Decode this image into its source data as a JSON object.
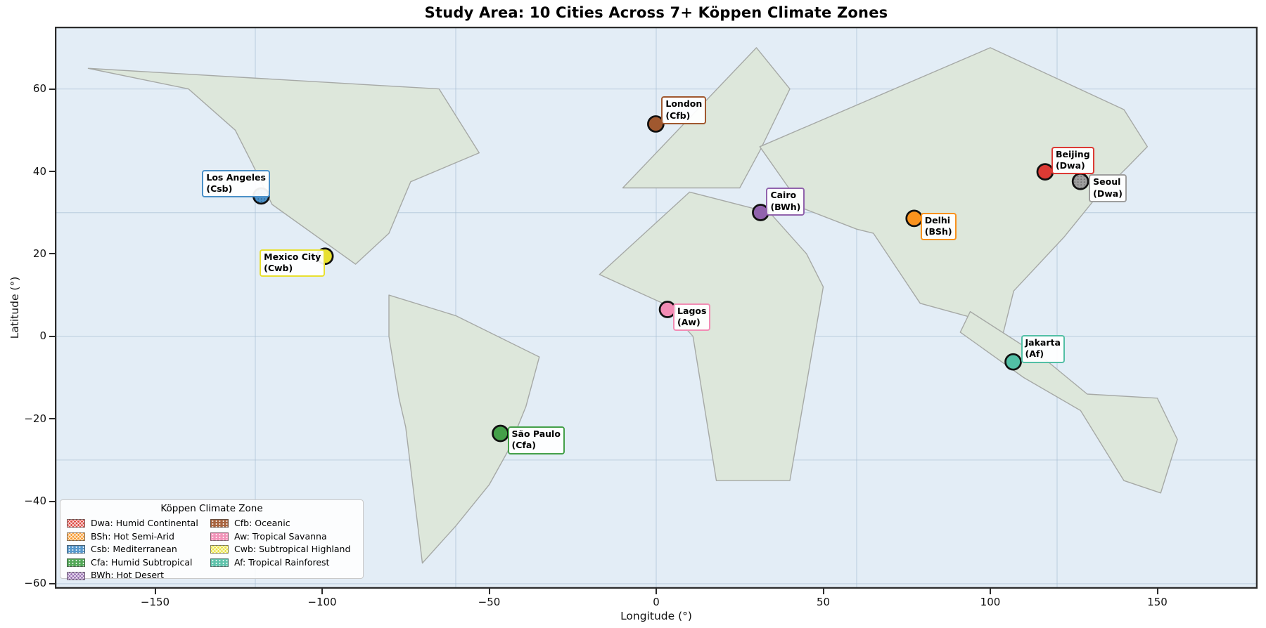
{
  "chart_data": {
    "type": "scatter",
    "title": "Study Area: 10 Cities Across 7+ Köppen Climate Zones",
    "xlabel": "Longitude (°)",
    "ylabel": "Latitude (°)",
    "xlim": [
      -180,
      180
    ],
    "ylim": [
      -61.2,
      75.1
    ],
    "grid": "on",
    "grid_lon": [
      -120,
      -60,
      0,
      60,
      120
    ],
    "grid_lat": [
      -60,
      -30,
      0,
      30,
      60
    ],
    "xticks": [
      {
        "value": -150,
        "label": "−150"
      },
      {
        "value": -100,
        "label": "−100"
      },
      {
        "value": -50,
        "label": "−50"
      },
      {
        "value": 0,
        "label": "0"
      },
      {
        "value": 50,
        "label": "50"
      },
      {
        "value": 100,
        "label": "100"
      },
      {
        "value": 150,
        "label": "150"
      }
    ],
    "yticks": [
      {
        "value": 60,
        "label": "60"
      },
      {
        "value": 40,
        "label": "40"
      },
      {
        "value": 20,
        "label": "20"
      },
      {
        "value": 0,
        "label": "0"
      },
      {
        "value": -20,
        "label": "−20"
      },
      {
        "value": -40,
        "label": "−40"
      },
      {
        "value": -60,
        "label": "−60"
      }
    ],
    "cities": [
      {
        "name": "Los Angeles",
        "koppen": "Csb",
        "lon": -118.24,
        "lat": 34.05,
        "color": "#4a90c8",
        "hatch": true,
        "label_offset": [
          -84,
          -37
        ]
      },
      {
        "name": "Mexico City",
        "koppen": "Cwb",
        "lon": -99.13,
        "lat": 19.43,
        "color": "#e8e030",
        "hatch": false,
        "label_offset": [
          -93,
          -10
        ]
      },
      {
        "name": "São Paulo",
        "koppen": "Cfa",
        "lon": -46.63,
        "lat": -23.55,
        "color": "#44a049",
        "hatch": false,
        "label_offset": [
          10,
          -10
        ]
      },
      {
        "name": "London",
        "koppen": "Cfb",
        "lon": -0.13,
        "lat": 51.51,
        "color": "#a0582f",
        "hatch": false,
        "label_offset": [
          8,
          -39
        ]
      },
      {
        "name": "Lagos",
        "koppen": "Aw",
        "lon": 3.38,
        "lat": 6.52,
        "color": "#f28cb4",
        "hatch": false,
        "label_offset": [
          8,
          -9
        ]
      },
      {
        "name": "Cairo",
        "koppen": "BWh",
        "lon": 31.25,
        "lat": 30.04,
        "color": "#9163ad",
        "hatch": false,
        "label_offset": [
          8,
          -35
        ]
      },
      {
        "name": "Delhi",
        "koppen": "BSh",
        "lon": 77.21,
        "lat": 28.61,
        "color": "#f9921d",
        "hatch": false,
        "label_offset": [
          9,
          -8
        ]
      },
      {
        "name": "Beijing",
        "koppen": "Dwa",
        "lon": 116.41,
        "lat": 39.9,
        "color": "#dc3a34",
        "hatch": false,
        "label_offset": [
          9,
          -36
        ]
      },
      {
        "name": "Seoul",
        "koppen": "Dwa",
        "lon": 126.98,
        "lat": 37.57,
        "color": "#9e9e9e",
        "hatch": true,
        "label_offset": [
          12,
          -10
        ]
      },
      {
        "name": "Jakarta",
        "koppen": "Af",
        "lon": 106.85,
        "lat": -6.2,
        "color": "#52bfa5",
        "hatch": false,
        "label_offset": [
          11,
          -38
        ]
      }
    ],
    "continents": [
      {
        "name": "north-america",
        "points": [
          [
            -170,
            65
          ],
          [
            -65,
            60
          ],
          [
            -53,
            44.5
          ],
          [
            -73.5,
            37.5
          ],
          [
            -80,
            25
          ],
          [
            -90,
            17.5
          ],
          [
            -115,
            32
          ],
          [
            -121,
            42
          ],
          [
            -126,
            50
          ],
          [
            -140,
            60
          ]
        ]
      },
      {
        "name": "south-america",
        "points": [
          [
            -80,
            10
          ],
          [
            -60,
            5
          ],
          [
            -35,
            -5
          ],
          [
            -39,
            -17
          ],
          [
            -44.5,
            -28
          ],
          [
            -50,
            -36
          ],
          [
            -60,
            -46
          ],
          [
            -70,
            -55
          ],
          [
            -75,
            -22
          ],
          [
            -77,
            -15
          ],
          [
            -80,
            0
          ]
        ]
      },
      {
        "name": "europe",
        "points": [
          [
            -10,
            36
          ],
          [
            30,
            70
          ],
          [
            40,
            60
          ],
          [
            31,
            45
          ],
          [
            25,
            36
          ]
        ]
      },
      {
        "name": "africa",
        "points": [
          [
            10,
            35
          ],
          [
            34,
            30
          ],
          [
            45,
            20
          ],
          [
            50,
            12
          ],
          [
            40,
            -35
          ],
          [
            18,
            -35
          ],
          [
            11,
            0
          ],
          [
            2,
            8
          ],
          [
            -17,
            15
          ]
        ]
      },
      {
        "name": "asia",
        "points": [
          [
            31,
            46
          ],
          [
            100,
            70
          ],
          [
            140,
            55
          ],
          [
            147,
            46
          ],
          [
            141,
            41
          ],
          [
            131,
            33
          ],
          [
            122,
            24
          ],
          [
            107,
            11
          ],
          [
            103,
            -2
          ],
          [
            97,
            4
          ],
          [
            79,
            8
          ],
          [
            65,
            25
          ],
          [
            60,
            26
          ],
          [
            44,
            31
          ]
        ]
      },
      {
        "name": "oceania",
        "points": [
          [
            94,
            6
          ],
          [
            117,
            -6
          ],
          [
            129,
            -14
          ],
          [
            150,
            -15
          ],
          [
            156,
            -25
          ],
          [
            151,
            -38
          ],
          [
            140,
            -35
          ],
          [
            127,
            -18
          ],
          [
            110,
            -10
          ],
          [
            91,
            1
          ]
        ]
      }
    ]
  },
  "legend": {
    "title": "Köppen Climate Zone",
    "items": [
      {
        "label": "Dwa: Humid Continental",
        "color": "#dc3a34",
        "pattern": "cross"
      },
      {
        "label": "BSh: Hot Semi-Arid",
        "color": "#f9921d",
        "pattern": "cross"
      },
      {
        "label": "Csb: Mediterranean",
        "color": "#4a90c8",
        "pattern": "dots"
      },
      {
        "label": "Cfa: Humid Subtropical",
        "color": "#44a049",
        "pattern": "dots"
      },
      {
        "label": "BWh: Hot Desert",
        "color": "#9163ad",
        "pattern": "cross"
      },
      {
        "label": "Cfb: Oceanic",
        "color": "#a0582f",
        "pattern": "dots"
      },
      {
        "label": "Aw: Tropical Savanna",
        "color": "#f28cb4",
        "pattern": "dots"
      },
      {
        "label": "Cwb: Subtropical Highland",
        "color": "#e8e030",
        "pattern": "cross"
      },
      {
        "label": "Af: Tropical Rainforest",
        "color": "#52bfa5",
        "pattern": "dots"
      }
    ]
  },
  "style": {
    "ocean": "#e3edf6",
    "land": "#dde7db",
    "land_edge": "#a6a9a6",
    "grid": "rgba(165,190,210,0.5)",
    "spine": "#2b2b2b",
    "marker_edge": "#111111"
  }
}
